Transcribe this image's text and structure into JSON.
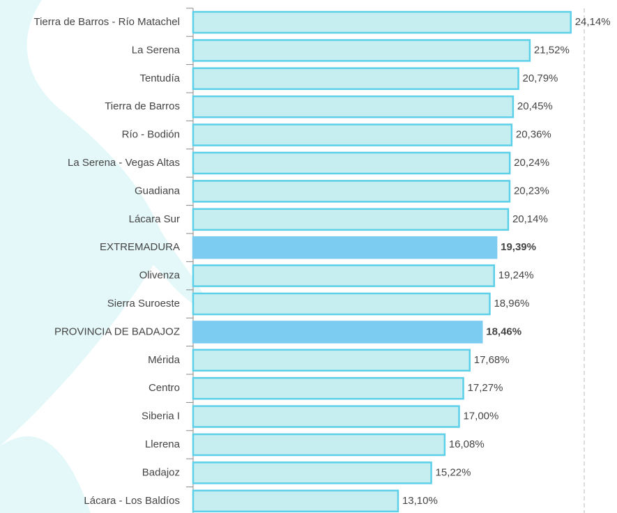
{
  "chart_data": {
    "type": "bar",
    "orientation": "horizontal",
    "categories": [
      "Tierra de Barros - Río Matachel",
      "La Serena",
      "Tentudía",
      "Tierra de Barros",
      "Río - Bodión",
      "La Serena - Vegas Altas",
      "Guadiana",
      "Lácara Sur",
      "EXTREMADURA",
      "Olivenza",
      "Sierra Suroeste",
      "PROVINCIA DE BADAJOZ",
      "Mérida",
      "Centro",
      "Siberia I",
      "Llerena",
      "Badajoz",
      "Lácara - Los Baldíos"
    ],
    "values": [
      24.14,
      21.52,
      20.79,
      20.45,
      20.36,
      20.24,
      20.23,
      20.14,
      19.39,
      19.24,
      18.96,
      18.46,
      17.68,
      17.27,
      17.0,
      16.08,
      15.22,
      13.1
    ],
    "value_labels": [
      "24,14%",
      "21,52%",
      "20,79%",
      "20,45%",
      "20,36%",
      "20,24%",
      "20,23%",
      "20,14%",
      "19,39%",
      "19,24%",
      "18,96%",
      "18,46%",
      "17,68%",
      "17,27%",
      "17,00%",
      "16,08%",
      "15,22%",
      "13,10%"
    ],
    "colors": [
      "#c6eef1",
      "#c6eef1",
      "#c6eef1",
      "#c6eef1",
      "#c6eef1",
      "#c6eef1",
      "#c6eef1",
      "#c6eef1",
      "#7ccbf0",
      "#c6eef1",
      "#c6eef1",
      "#7ccbf0",
      "#c6eef1",
      "#c6eef1",
      "#c6eef1",
      "#c6eef1",
      "#c6eef1",
      "#c6eef1"
    ],
    "xlim": [
      0,
      25
    ],
    "grid": true
  }
}
